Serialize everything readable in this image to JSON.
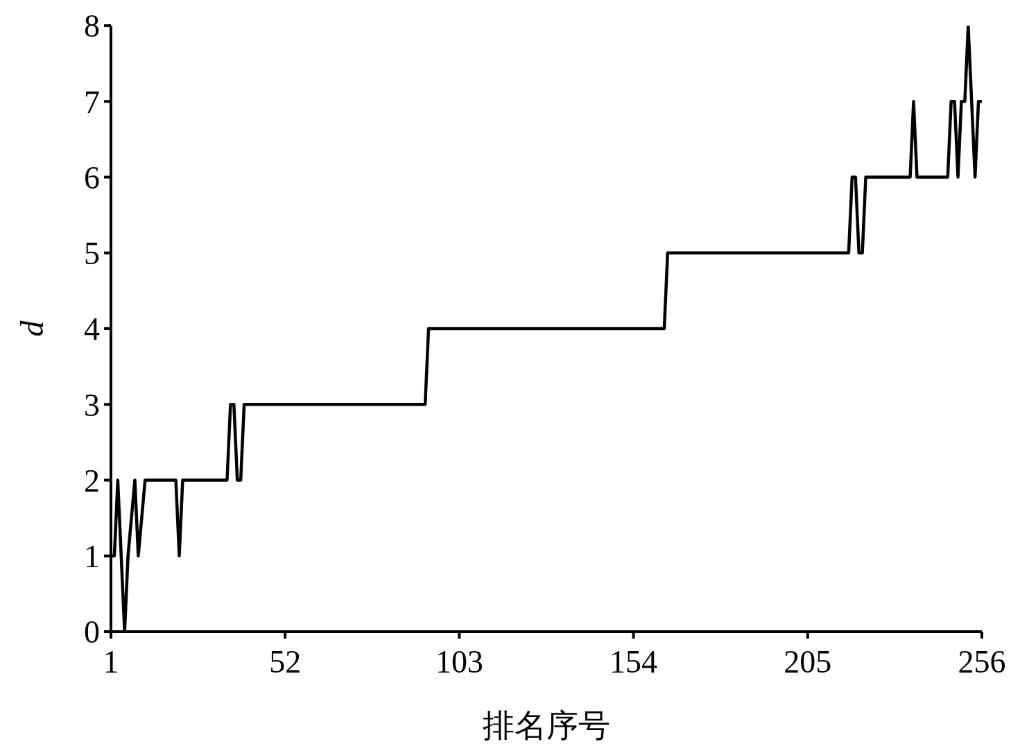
{
  "chart_data": {
    "type": "line",
    "xlabel": "排名序号",
    "ylabel": "d",
    "series": [
      {
        "color": "#000000",
        "x": [
          1,
          2,
          3,
          5,
          6,
          8,
          9,
          11,
          20,
          21,
          22,
          35,
          36,
          37,
          38,
          39,
          40,
          93,
          94,
          163,
          164,
          217,
          218,
          219,
          220,
          221,
          222,
          235,
          236,
          237,
          246,
          247,
          248,
          249,
          250,
          251,
          252,
          254,
          255,
          256
        ],
        "values": [
          1,
          1,
          2,
          0,
          1,
          2,
          1,
          2,
          2,
          1,
          2,
          2,
          3,
          3,
          2,
          2,
          3,
          3,
          4,
          4,
          5,
          5,
          6,
          6,
          5,
          5,
          6,
          6,
          7,
          6,
          6,
          7,
          7,
          6,
          7,
          7,
          8,
          6,
          7,
          7
        ]
      }
    ],
    "xlim": [
      1,
      256
    ],
    "xticks": [
      1,
      52,
      103,
      154,
      205,
      256
    ],
    "ylim": [
      0,
      8
    ],
    "yticks": [
      0,
      1,
      2,
      3,
      4,
      5,
      6,
      7,
      8
    ],
    "grid": false,
    "legend": false,
    "marker": "none",
    "line_style": "solid"
  }
}
